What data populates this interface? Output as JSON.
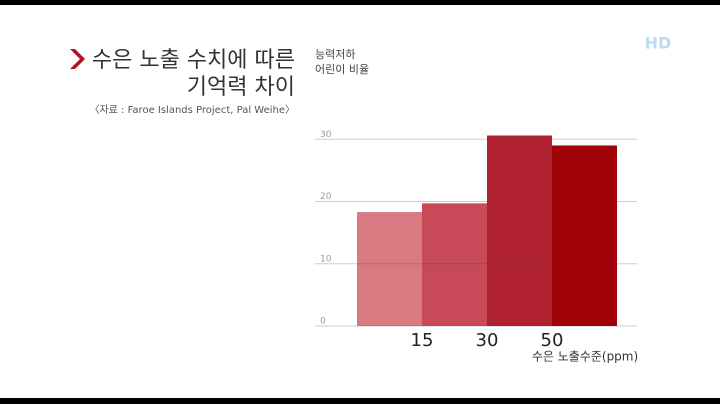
{
  "chart_data": {
    "type": "bar",
    "title_lines": [
      "수은 노출 수치에 따른",
      "기억력 차이"
    ],
    "source": "〈자료 : Faroe Islands Project, Pal Weihe〉",
    "logo": "HD",
    "ylabel_lines": [
      "능력저하",
      "어린이 비율"
    ],
    "xlabel": "수은 노출수준(ppm)",
    "categories": [
      null,
      "15",
      "30",
      "50"
    ],
    "values": [
      18.3,
      19.7,
      30.6,
      29.0
    ],
    "colors": [
      "#d97a83",
      "#c84a58",
      "#b0222f",
      "#a00008"
    ],
    "ylim": [
      0,
      40
    ],
    "yticks": [
      0,
      10,
      20,
      30
    ],
    "grid": true
  }
}
